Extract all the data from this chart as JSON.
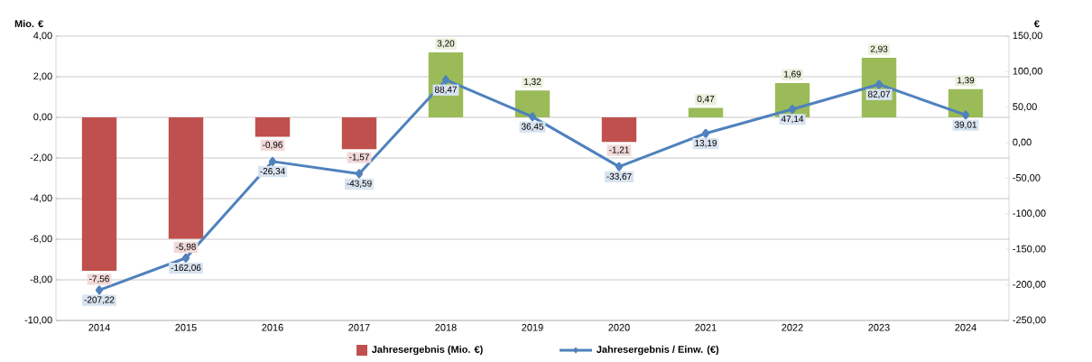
{
  "chart_data": {
    "type": "bar",
    "ylabel": "Mio. €",
    "y2label": "€",
    "categories": [
      "2014",
      "2015",
      "2016",
      "2017",
      "2018",
      "2019",
      "2020",
      "2021",
      "2022",
      "2023",
      "2024"
    ],
    "ylim": [
      -10,
      4
    ],
    "yticks": [
      {
        "value": -10,
        "label": "-10,00"
      },
      {
        "value": -8,
        "label": "-8,00"
      },
      {
        "value": -6,
        "label": "-6,00"
      },
      {
        "value": -4,
        "label": "-4,00"
      },
      {
        "value": -2,
        "label": "-2,00"
      },
      {
        "value": 0,
        "label": "0,00"
      },
      {
        "value": 2,
        "label": "2,00"
      },
      {
        "value": 4,
        "label": "4,00"
      }
    ],
    "y2lim": [
      -250,
      150
    ],
    "y2ticks": [
      {
        "value": -250,
        "label": "-250,00"
      },
      {
        "value": -200,
        "label": "-200,00"
      },
      {
        "value": -150,
        "label": "-150,00"
      },
      {
        "value": -100,
        "label": "-100,00"
      },
      {
        "value": -50,
        "label": "-50,00"
      },
      {
        "value": 0,
        "label": "0,00"
      },
      {
        "value": 50,
        "label": "50,00"
      },
      {
        "value": 100,
        "label": "100,00"
      },
      {
        "value": 150,
        "label": "150,00"
      }
    ],
    "grid": "y",
    "legend": "bottom",
    "series": [
      {
        "name": "Jahresergebnis (Mio. €)",
        "colors": [
          "#c0504d",
          "#c0504d",
          "#c0504d",
          "#c0504d",
          "#9bbb59",
          "#9bbb59",
          "#c0504d",
          "#9bbb59",
          "#9bbb59",
          "#9bbb59",
          "#9bbb59"
        ],
        "values": [
          -7.56,
          -5.98,
          -0.96,
          -1.57,
          3.2,
          1.32,
          -1.21,
          0.47,
          1.69,
          2.93,
          1.39
        ],
        "value_labels": [
          "-7,56",
          "-5,98",
          "-0,96",
          "-1,57",
          "3,20",
          "1,32",
          "-1,21",
          "0,47",
          "1,69",
          "2,93",
          "1,39"
        ]
      },
      {
        "name": "Jahresergebnis / Einw. (€)",
        "type": "line",
        "axis": "y2",
        "color": "#4f81bd",
        "marker": "diamond",
        "values": [
          -207.22,
          -162.06,
          -26.34,
          -43.59,
          88.47,
          36.45,
          -33.67,
          13.19,
          47.14,
          82.07,
          39.01
        ],
        "value_labels": [
          "-207,22",
          "-162,06",
          "-26,34",
          "-43,59",
          "88,47",
          "36,45",
          "-33,67",
          "13,19",
          "47,14",
          "82,07",
          "39,01"
        ]
      }
    ]
  }
}
